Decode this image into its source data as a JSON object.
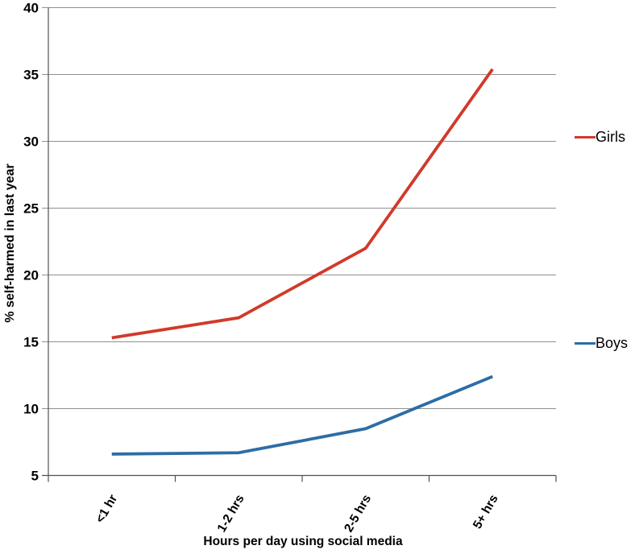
{
  "chart_data": {
    "type": "line",
    "title": "",
    "categories": [
      "<1 hr",
      "1-2 hrs",
      "2-5 hrs",
      "5+ hrs"
    ],
    "series": [
      {
        "name": "Girls",
        "color": "#d2392a",
        "values": [
          15.3,
          16.8,
          22.0,
          35.4
        ]
      },
      {
        "name": "Boys",
        "color": "#2d6da6",
        "values": [
          6.6,
          6.7,
          8.5,
          12.4
        ]
      }
    ],
    "xlabel": "Hours per day using social media",
    "ylabel": "% self-harmed in last year",
    "ylim": [
      5,
      40
    ],
    "ytick_step": 5,
    "grid": true,
    "legend_position": "right",
    "colors": {
      "gridline": "#8f8f8f",
      "axis": "#4f4f4f",
      "text": "#000000"
    }
  }
}
